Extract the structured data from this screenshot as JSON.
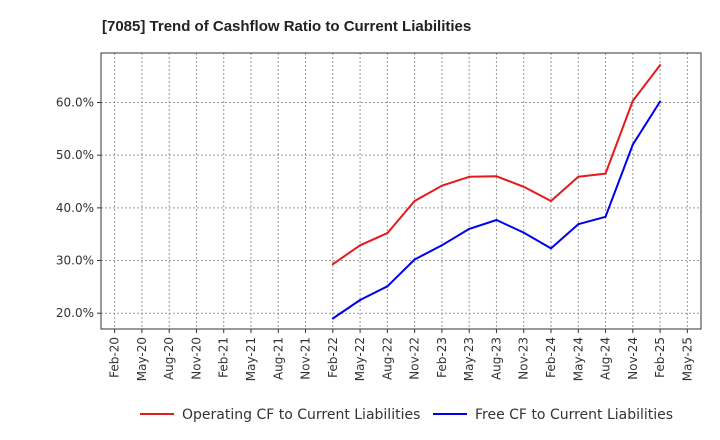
{
  "chart_data": {
    "type": "line",
    "title": "[7085]  Trend of Cashflow Ratio to Current Liabilities",
    "xlabel": "",
    "ylabel": "",
    "x_ticks": [
      "Feb-20",
      "May-20",
      "Aug-20",
      "Nov-20",
      "Feb-21",
      "May-21",
      "Aug-21",
      "Nov-21",
      "Feb-22",
      "May-22",
      "Aug-22",
      "Nov-22",
      "Feb-23",
      "May-23",
      "Aug-23",
      "Nov-23",
      "Feb-24",
      "May-24",
      "Aug-24",
      "Nov-24",
      "Feb-25",
      "May-25"
    ],
    "y_ticks": [
      "20.0%",
      "30.0%",
      "40.0%",
      "50.0%",
      "60.0%"
    ],
    "y_tick_values": [
      20,
      30,
      40,
      50,
      60
    ],
    "ylim": [
      17.0,
      69.4
    ],
    "grid": true,
    "legend_position": "bottom",
    "series": [
      {
        "name": "Operating CF to Current Liabilities",
        "color": "#e41a1c",
        "x": [
          "Feb-22",
          "May-22",
          "Aug-22",
          "Nov-22",
          "Feb-23",
          "May-23",
          "Aug-23",
          "Nov-23",
          "Feb-24",
          "May-24",
          "Aug-24",
          "Nov-24",
          "Feb-25"
        ],
        "values": [
          29.3,
          32.9,
          35.2,
          41.3,
          44.2,
          45.9,
          46.0,
          44.0,
          41.3,
          45.9,
          46.5,
          60.3,
          67.1
        ]
      },
      {
        "name": "Free CF to Current Liabilities",
        "color": "#0000ee",
        "x": [
          "Feb-22",
          "May-22",
          "Aug-22",
          "Nov-22",
          "Feb-23",
          "May-23",
          "Aug-23",
          "Nov-23",
          "Feb-24",
          "May-24",
          "Aug-24",
          "Nov-24",
          "Feb-25"
        ],
        "values": [
          19.0,
          22.5,
          25.1,
          30.2,
          32.9,
          36.0,
          37.7,
          35.3,
          32.3,
          36.9,
          38.3,
          52.0,
          60.2
        ]
      }
    ]
  }
}
